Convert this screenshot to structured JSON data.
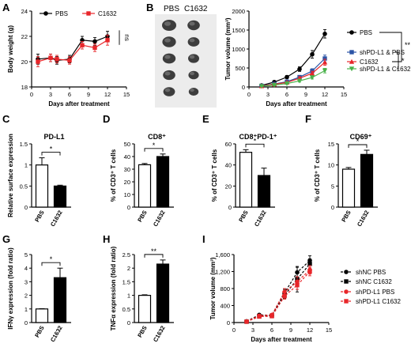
{
  "panels": [
    {
      "letter": "A"
    },
    {
      "letter": "B"
    },
    {
      "letter": "C"
    },
    {
      "letter": "D"
    },
    {
      "letter": "E"
    },
    {
      "letter": "F"
    },
    {
      "letter": "G"
    },
    {
      "letter": "H"
    },
    {
      "letter": "I"
    }
  ],
  "photo": {
    "col_labels": [
      "PBS",
      "C1632"
    ],
    "rows": 5
  },
  "chart_data": [
    {
      "id": "A",
      "type": "line",
      "xlabel": "Days after treatment",
      "ylabel": "Body weight (g)",
      "xlim": [
        0,
        15
      ],
      "ylim": [
        18,
        24
      ],
      "xticks": [
        0,
        3,
        6,
        9,
        12,
        15
      ],
      "yticks": [
        18,
        20,
        22,
        24
      ],
      "legend": "top",
      "annotation": "ns",
      "x": [
        1,
        3,
        4,
        6,
        8,
        10,
        12
      ],
      "series": [
        {
          "name": "PBS",
          "color": "#000000",
          "marker": "circle",
          "values": [
            20.2,
            20.3,
            20.1,
            20.2,
            21.7,
            21.6,
            22.0
          ],
          "err": [
            0.4,
            0.3,
            0.3,
            0.3,
            0.3,
            0.3,
            0.4
          ]
        },
        {
          "name": "C1632",
          "color": "#e8262a",
          "marker": "square",
          "values": [
            20.0,
            20.3,
            20.2,
            20.1,
            21.3,
            21.1,
            21.7
          ],
          "err": [
            0.4,
            0.3,
            0.3,
            0.3,
            0.3,
            0.3,
            0.4
          ]
        }
      ]
    },
    {
      "id": "B",
      "type": "line",
      "xlabel": "Days after treatment",
      "ylabel": "Tumor volume (mm³)",
      "xlim": [
        0,
        15
      ],
      "ylim": [
        0,
        2000
      ],
      "xticks": [
        0,
        3,
        6,
        9,
        12,
        15
      ],
      "yticks": [
        0,
        500,
        1000,
        1500,
        2000
      ],
      "legend": "right",
      "annotations": [
        "**",
        "*"
      ],
      "x": [
        2,
        4,
        6,
        8,
        10,
        12
      ],
      "series": [
        {
          "name": "PBS",
          "color": "#000000",
          "marker": "circle",
          "values": [
            40,
            130,
            260,
            470,
            860,
            1400
          ],
          "err": [
            15,
            25,
            40,
            60,
            100,
            110
          ]
        },
        {
          "name": "shPD-L1 & PBS",
          "color": "#2b54a6",
          "marker": "square",
          "values": [
            30,
            80,
            140,
            260,
            420,
            750
          ],
          "err": [
            10,
            20,
            30,
            40,
            60,
            90
          ]
        },
        {
          "name": "C1632",
          "color": "#e8262a",
          "marker": "triangle",
          "values": [
            25,
            70,
            120,
            230,
            360,
            650
          ],
          "err": [
            10,
            20,
            25,
            40,
            55,
            80
          ]
        },
        {
          "name": "shPD-L1 & C1632",
          "color": "#49b24a",
          "marker": "triangle-down",
          "values": [
            20,
            50,
            90,
            160,
            250,
            430
          ],
          "err": [
            8,
            15,
            20,
            30,
            40,
            60
          ]
        }
      ]
    },
    {
      "id": "C",
      "type": "bar",
      "title": "PD-L1",
      "ylabel": "Relative surface expression",
      "ylim": [
        0,
        1.5
      ],
      "yticks": [
        0.0,
        0.5,
        1.0,
        1.5
      ],
      "categories": [
        "PBS",
        "C1632"
      ],
      "values": [
        1.0,
        0.5
      ],
      "err": [
        0.17,
        0.02
      ],
      "fills": [
        "#ffffff",
        "#000000"
      ],
      "annotation": "*"
    },
    {
      "id": "D",
      "type": "bar",
      "title": "CD8⁺",
      "ylabel": "% of CD3⁺ T cells",
      "ylim": [
        0,
        50
      ],
      "yticks": [
        0,
        10,
        20,
        30,
        40,
        50
      ],
      "categories": [
        "PBS",
        "C1632"
      ],
      "values": [
        33.5,
        40.0
      ],
      "err": [
        1.0,
        2.0
      ],
      "fills": [
        "#ffffff",
        "#000000"
      ],
      "annotation": "*"
    },
    {
      "id": "E",
      "type": "bar",
      "title": "CD8⁺PD-1⁺",
      "ylabel": "% of CD3⁺ T cells",
      "ylim": [
        0,
        60
      ],
      "yticks": [
        0,
        20,
        40,
        60
      ],
      "categories": [
        "PBS",
        "C1632"
      ],
      "values": [
        52.0,
        30.0
      ],
      "err": [
        2.5,
        7.0
      ],
      "fills": [
        "#ffffff",
        "#000000"
      ],
      "annotation": "*"
    },
    {
      "id": "F",
      "type": "bar",
      "title": "CD69⁺",
      "ylabel": "% of CD3⁺ T cells",
      "ylim": [
        0,
        15
      ],
      "yticks": [
        0,
        5,
        10,
        15
      ],
      "categories": [
        "PBS",
        "C1632"
      ],
      "values": [
        9.0,
        12.5
      ],
      "err": [
        0.4,
        1.0
      ],
      "fills": [
        "#ffffff",
        "#000000"
      ],
      "annotation": "*"
    },
    {
      "id": "G",
      "type": "bar",
      "ylabel": "IFNγ expression (fold ratio)",
      "ylim": [
        0,
        5
      ],
      "yticks": [
        0,
        1,
        2,
        3,
        4,
        5
      ],
      "categories": [
        "PBS",
        "C1632"
      ],
      "values": [
        1.0,
        3.3
      ],
      "err": [
        0.02,
        0.7
      ],
      "fills": [
        "#ffffff",
        "#000000"
      ],
      "annotation": "*"
    },
    {
      "id": "H",
      "type": "bar",
      "ylabel": "TNFα expression (fold ratio)",
      "ylim": [
        0.0,
        2.5
      ],
      "yticks": [
        0.0,
        0.5,
        1.0,
        1.5,
        2.0,
        2.5
      ],
      "categories": [
        "PBS",
        "C1632"
      ],
      "values": [
        1.0,
        2.15
      ],
      "err": [
        0.02,
        0.15
      ],
      "fills": [
        "#ffffff",
        "#000000"
      ],
      "annotation": "**"
    },
    {
      "id": "I",
      "type": "line",
      "xlabel": "Days after treatment",
      "ylabel": "Tumor volume (mm³)",
      "xlim": [
        0,
        15
      ],
      "ylim": [
        0,
        1600
      ],
      "xticks": [
        0,
        3,
        6,
        9,
        12,
        15
      ],
      "yticks": [
        0,
        400,
        800,
        1200,
        1600
      ],
      "ytick_labels": [
        "0",
        "400",
        "800",
        "1,200",
        "1,600"
      ],
      "legend": "right",
      "x": [
        2,
        4,
        6,
        8,
        10,
        12
      ],
      "series": [
        {
          "name": "shNC PBS",
          "color": "#000000",
          "marker": "circle",
          "dash": true,
          "values": [
            30,
            180,
            170,
            700,
            1180,
            1460
          ],
          "err": [
            10,
            30,
            30,
            80,
            120,
            110
          ]
        },
        {
          "name": "shNC C1632",
          "color": "#000000",
          "marker": "square",
          "dash": true,
          "values": [
            20,
            150,
            160,
            640,
            1020,
            1380
          ],
          "err": [
            10,
            30,
            30,
            80,
            300,
            120
          ]
        },
        {
          "name": "shPD-L1 PBS",
          "color": "#e8262a",
          "marker": "circle",
          "dash": true,
          "values": [
            25,
            160,
            180,
            720,
            960,
            1240
          ],
          "err": [
            10,
            30,
            30,
            80,
            120,
            100
          ]
        },
        {
          "name": "shPD-L1 C1632",
          "color": "#e8262a",
          "marker": "square",
          "dash": true,
          "values": [
            20,
            140,
            150,
            620,
            880,
            1200
          ],
          "err": [
            10,
            30,
            30,
            70,
            100,
            100
          ]
        }
      ]
    }
  ]
}
